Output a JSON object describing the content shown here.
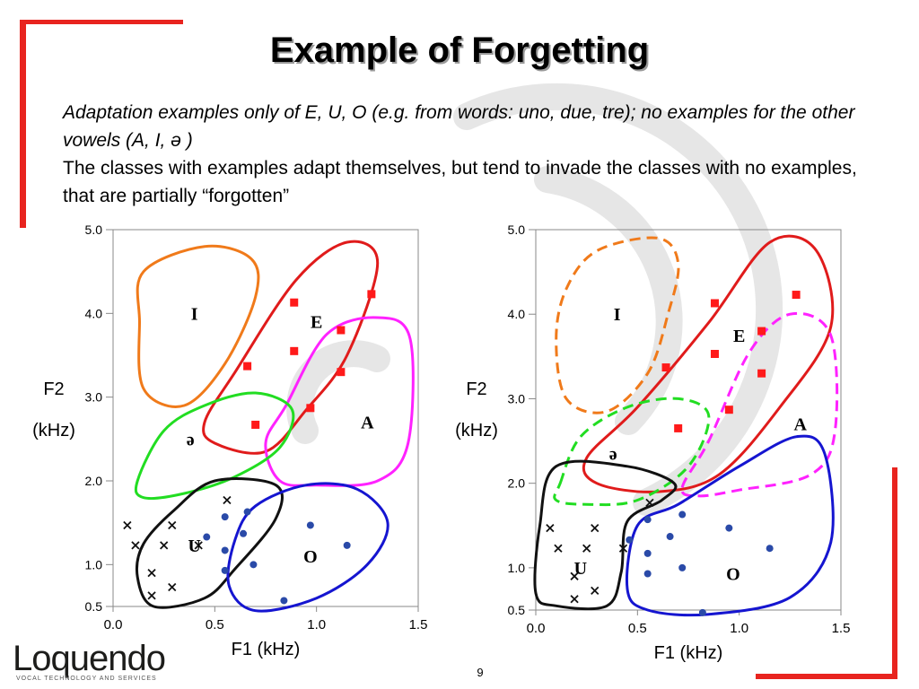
{
  "slide": {
    "title": "Example of Forgetting",
    "line1": "Adaptation examples only of E, U, O (e.g. from words: uno, due, tre); no examples for the other vowels (A, I, ə )",
    "line2": "The classes with examples adapt themselves, but tend to invade the classes with no examples, that are partially  “forgotten”",
    "page_number": "9"
  },
  "logo": {
    "name": "Loquendo",
    "tagline": "VOCAL TECHNOLOGY AND SERVICES"
  },
  "colors": {
    "accent_red": "#e8241f",
    "I": "#f07a1a",
    "E": "#e01b1b",
    "A": "#ff22ff",
    "schwa": "#22dd22",
    "U": "#111111",
    "O": "#1515d0",
    "square_marker": "#ff1a1a",
    "circle_marker": "#2a4aa8"
  },
  "chart_data": [
    {
      "type": "scatter",
      "xlabel": "F1 (kHz)",
      "ylabel_line1": "F2",
      "ylabel_line2": "(kHz)",
      "xlim": [
        0.0,
        1.5
      ],
      "ylim": [
        0.5,
        5.0
      ],
      "x_ticks": [
        "0.0",
        "0.5",
        "1.0",
        "1.5"
      ],
      "y_ticks": [
        "0.5",
        "1.0",
        "2.0",
        "3.0",
        "4.0",
        "5.0"
      ],
      "class_labels": [
        {
          "label": "I",
          "x": 0.4,
          "y": 4.0
        },
        {
          "label": "E",
          "x": 1.0,
          "y": 3.9
        },
        {
          "label": "A",
          "x": 1.25,
          "y": 2.7
        },
        {
          "label": "ə",
          "x": 0.38,
          "y": 2.5
        },
        {
          "label": "U",
          "x": 0.4,
          "y": 1.23
        },
        {
          "label": "O",
          "x": 0.97,
          "y": 1.1
        }
      ],
      "squares": [
        [
          0.66,
          3.37
        ],
        [
          0.7,
          2.67
        ],
        [
          0.89,
          4.13
        ],
        [
          0.89,
          3.55
        ],
        [
          0.97,
          2.87
        ],
        [
          1.12,
          3.8
        ],
        [
          1.12,
          3.3
        ],
        [
          1.27,
          4.23
        ]
      ],
      "crosses": [
        [
          0.07,
          1.47
        ],
        [
          0.11,
          1.23
        ],
        [
          0.19,
          0.9
        ],
        [
          0.19,
          0.63
        ],
        [
          0.25,
          1.23
        ],
        [
          0.29,
          1.47
        ],
        [
          0.29,
          0.73
        ],
        [
          0.42,
          1.23
        ],
        [
          0.56,
          1.77
        ]
      ],
      "circles": [
        [
          0.46,
          1.33
        ],
        [
          0.55,
          1.57
        ],
        [
          0.55,
          1.17
        ],
        [
          0.55,
          0.93
        ],
        [
          0.64,
          1.37
        ],
        [
          0.66,
          1.63
        ],
        [
          0.69,
          1.0
        ],
        [
          0.84,
          0.57
        ],
        [
          0.97,
          1.47
        ],
        [
          1.15,
          1.23
        ]
      ],
      "regions": [
        {
          "name": "I",
          "dashed": false,
          "points": [
            [
              0.13,
              3.9
            ],
            [
              0.15,
              4.5
            ],
            [
              0.45,
              4.8
            ],
            [
              0.68,
              4.65
            ],
            [
              0.7,
              4.2
            ],
            [
              0.55,
              3.4
            ],
            [
              0.35,
              2.9
            ],
            [
              0.15,
              3.1
            ]
          ]
        },
        {
          "name": "E",
          "dashed": false,
          "points": [
            [
              0.45,
              2.7
            ],
            [
              0.6,
              3.3
            ],
            [
              0.9,
              4.4
            ],
            [
              1.15,
              4.85
            ],
            [
              1.3,
              4.6
            ],
            [
              1.15,
              3.5
            ],
            [
              0.95,
              2.85
            ],
            [
              0.75,
              2.35
            ],
            [
              0.5,
              2.45
            ]
          ]
        },
        {
          "name": "A",
          "dashed": false,
          "points": [
            [
              0.75,
              2.45
            ],
            [
              0.85,
              2.9
            ],
            [
              1.05,
              3.75
            ],
            [
              1.3,
              3.95
            ],
            [
              1.46,
              3.7
            ],
            [
              1.45,
              2.45
            ],
            [
              1.3,
              2.0
            ],
            [
              1.0,
              1.95
            ],
            [
              0.82,
              2.0
            ]
          ]
        },
        {
          "name": "ə",
          "dashed": false,
          "points": [
            [
              0.12,
              2.0
            ],
            [
              0.25,
              2.6
            ],
            [
              0.45,
              2.9
            ],
            [
              0.7,
              3.05
            ],
            [
              0.88,
              2.85
            ],
            [
              0.82,
              2.4
            ],
            [
              0.6,
              2.05
            ],
            [
              0.35,
              1.85
            ],
            [
              0.15,
              1.8
            ]
          ]
        },
        {
          "name": "U",
          "dashed": false,
          "points": [
            [
              0.12,
              0.85
            ],
            [
              0.15,
              1.25
            ],
            [
              0.3,
              1.65
            ],
            [
              0.5,
              2.0
            ],
            [
              0.8,
              1.95
            ],
            [
              0.8,
              1.55
            ],
            [
              0.6,
              0.95
            ],
            [
              0.45,
              0.6
            ],
            [
              0.2,
              0.5
            ]
          ]
        },
        {
          "name": "O",
          "dashed": false,
          "points": [
            [
              0.57,
              0.75
            ],
            [
              0.6,
              1.3
            ],
            [
              0.7,
              1.7
            ],
            [
              0.95,
              1.95
            ],
            [
              1.2,
              1.9
            ],
            [
              1.35,
              1.5
            ],
            [
              1.25,
              1.0
            ],
            [
              1.0,
              0.6
            ],
            [
              0.7,
              0.45
            ]
          ]
        }
      ]
    },
    {
      "type": "scatter",
      "xlabel": "F1 (kHz)",
      "ylabel_line1": "F2",
      "ylabel_line2": "(kHz)",
      "xlim": [
        0.0,
        1.5
      ],
      "ylim": [
        0.5,
        5.0
      ],
      "x_ticks": [
        "0.0",
        "0.5",
        "1.0",
        "1.5"
      ],
      "y_ticks": [
        "0.5",
        "1.0",
        "2.0",
        "3.0",
        "4.0",
        "5.0"
      ],
      "class_labels": [
        {
          "label": "I",
          "x": 0.4,
          "y": 4.0
        },
        {
          "label": "E",
          "x": 1.0,
          "y": 3.75
        },
        {
          "label": "A",
          "x": 1.3,
          "y": 2.7
        },
        {
          "label": "ə",
          "x": 0.38,
          "y": 2.35
        },
        {
          "label": "U",
          "x": 0.22,
          "y": 1.0
        },
        {
          "label": "O",
          "x": 0.97,
          "y": 0.93
        }
      ],
      "squares": [
        [
          0.64,
          3.37
        ],
        [
          0.7,
          2.65
        ],
        [
          0.88,
          4.13
        ],
        [
          0.88,
          3.53
        ],
        [
          0.95,
          2.87
        ],
        [
          1.11,
          3.8
        ],
        [
          1.11,
          3.3
        ],
        [
          1.28,
          4.23
        ]
      ],
      "crosses": [
        [
          0.07,
          1.47
        ],
        [
          0.11,
          1.23
        ],
        [
          0.19,
          0.9
        ],
        [
          0.19,
          0.63
        ],
        [
          0.25,
          1.23
        ],
        [
          0.29,
          1.47
        ],
        [
          0.29,
          0.73
        ],
        [
          0.43,
          1.23
        ],
        [
          0.56,
          1.77
        ]
      ],
      "circles": [
        [
          0.46,
          1.33
        ],
        [
          0.55,
          1.57
        ],
        [
          0.55,
          1.17
        ],
        [
          0.55,
          0.93
        ],
        [
          0.66,
          1.37
        ],
        [
          0.72,
          1.63
        ],
        [
          0.72,
          1.0
        ],
        [
          0.82,
          0.47
        ],
        [
          0.95,
          1.47
        ],
        [
          1.15,
          1.23
        ]
      ],
      "regions": [
        {
          "name": "I",
          "dashed": true,
          "points": [
            [
              0.1,
              3.7
            ],
            [
              0.15,
              4.3
            ],
            [
              0.3,
              4.75
            ],
            [
              0.6,
              4.9
            ],
            [
              0.7,
              4.6
            ],
            [
              0.65,
              4.0
            ],
            [
              0.55,
              3.3
            ],
            [
              0.35,
              2.85
            ],
            [
              0.15,
              3.0
            ]
          ]
        },
        {
          "name": "E",
          "dashed": false,
          "points": [
            [
              0.25,
              2.3
            ],
            [
              0.5,
              2.9
            ],
            [
              0.85,
              3.9
            ],
            [
              1.15,
              4.85
            ],
            [
              1.38,
              4.75
            ],
            [
              1.45,
              3.85
            ],
            [
              1.2,
              2.9
            ],
            [
              0.9,
              2.1
            ],
            [
              0.6,
              1.9
            ],
            [
              0.3,
              2.0
            ]
          ]
        },
        {
          "name": "A",
          "dashed": true,
          "points": [
            [
              0.72,
              1.95
            ],
            [
              0.85,
              2.5
            ],
            [
              1.05,
              3.55
            ],
            [
              1.25,
              4.0
            ],
            [
              1.45,
              3.75
            ],
            [
              1.47,
              2.6
            ],
            [
              1.35,
              2.1
            ],
            [
              1.0,
              1.92
            ],
            [
              0.8,
              1.85
            ]
          ]
        },
        {
          "name": "ə",
          "dashed": true,
          "points": [
            [
              0.12,
              2.0
            ],
            [
              0.22,
              2.55
            ],
            [
              0.45,
              2.9
            ],
            [
              0.7,
              3.0
            ],
            [
              0.85,
              2.8
            ],
            [
              0.75,
              2.2
            ],
            [
              0.5,
              1.8
            ],
            [
              0.25,
              1.75
            ],
            [
              0.1,
              1.8
            ]
          ]
        },
        {
          "name": "U",
          "dashed": false,
          "points": [
            [
              0.0,
              0.7
            ],
            [
              0.02,
              1.5
            ],
            [
              0.1,
              2.2
            ],
            [
              0.45,
              2.2
            ],
            [
              0.68,
              2.0
            ],
            [
              0.62,
              1.8
            ],
            [
              0.45,
              1.55
            ],
            [
              0.42,
              0.95
            ],
            [
              0.35,
              0.55
            ],
            [
              0.1,
              0.55
            ]
          ]
        },
        {
          "name": "O",
          "dashed": false,
          "points": [
            [
              0.45,
              0.75
            ],
            [
              0.5,
              1.5
            ],
            [
              0.7,
              1.75
            ],
            [
              1.0,
              2.2
            ],
            [
              1.28,
              2.55
            ],
            [
              1.42,
              2.35
            ],
            [
              1.45,
              1.3
            ],
            [
              1.25,
              0.65
            ],
            [
              0.85,
              0.45
            ],
            [
              0.55,
              0.5
            ]
          ]
        }
      ]
    }
  ]
}
